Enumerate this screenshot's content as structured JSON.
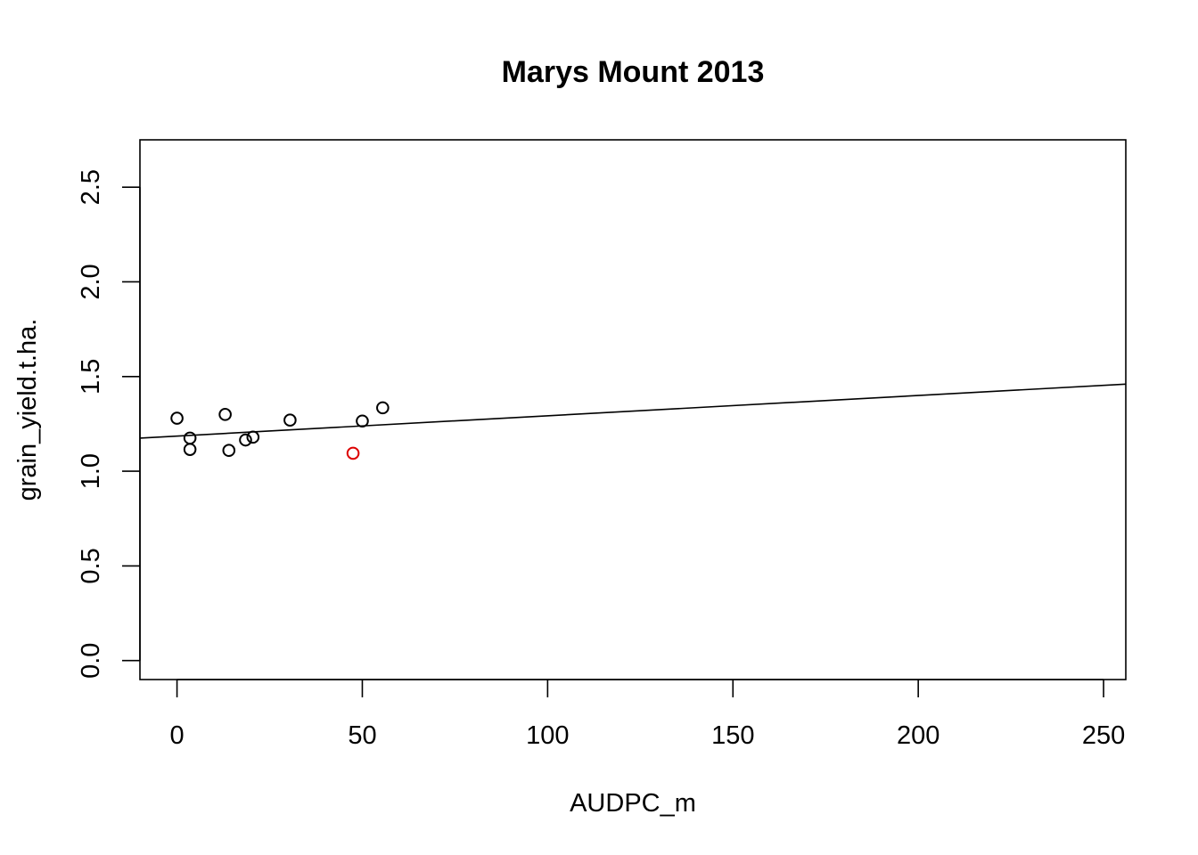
{
  "chart_data": {
    "type": "scatter",
    "title": "Marys Mount 2013",
    "xlabel": "AUDPC_m",
    "ylabel": "grain_yield.t.ha.",
    "xlim": [
      -10,
      256
    ],
    "ylim": [
      -0.1,
      2.75
    ],
    "x_ticks": [
      0,
      50,
      100,
      150,
      200,
      250
    ],
    "x_tick_labels": [
      "0",
      "50",
      "100",
      "150",
      "200",
      "250"
    ],
    "y_ticks": [
      0.0,
      0.5,
      1.0,
      1.5,
      2.0,
      2.5
    ],
    "y_tick_labels": [
      "0.0",
      "0.5",
      "1.0",
      "1.5",
      "2.0",
      "2.5"
    ],
    "grid": false,
    "colors": {
      "default_point": "#000000",
      "highlight_point": "#dd0000",
      "fit_line": "#000000"
    },
    "points": [
      {
        "x": 0.0,
        "y": 1.28,
        "color": "#000000"
      },
      {
        "x": 3.5,
        "y": 1.175,
        "color": "#000000"
      },
      {
        "x": 3.5,
        "y": 1.115,
        "color": "#000000"
      },
      {
        "x": 13.0,
        "y": 1.3,
        "color": "#000000"
      },
      {
        "x": 14.0,
        "y": 1.11,
        "color": "#000000"
      },
      {
        "x": 18.5,
        "y": 1.165,
        "color": "#000000"
      },
      {
        "x": 20.5,
        "y": 1.18,
        "color": "#000000"
      },
      {
        "x": 30.5,
        "y": 1.27,
        "color": "#000000"
      },
      {
        "x": 47.5,
        "y": 1.095,
        "color": "#dd0000"
      },
      {
        "x": 50.0,
        "y": 1.265,
        "color": "#000000"
      },
      {
        "x": 55.5,
        "y": 1.335,
        "color": "#000000"
      }
    ],
    "fit_line": {
      "x_start": -10,
      "y_start": 1.175,
      "x_end": 256,
      "y_end": 1.46
    }
  }
}
